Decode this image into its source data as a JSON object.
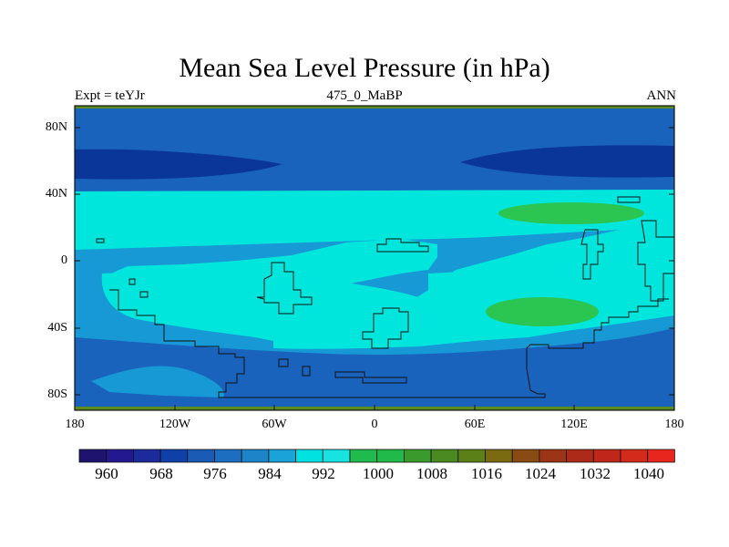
{
  "title": "Mean Sea Level Pressure (in hPa)",
  "subtitle_left": "Expt = teYJr",
  "subtitle_center": "475_0_MaBP",
  "subtitle_right": "ANN",
  "lat_labels": [
    "80N",
    "40N",
    "0",
    "40S",
    "80S"
  ],
  "lon_labels": [
    "180",
    "120W",
    "60W",
    "0",
    "60E",
    "120E",
    "180"
  ],
  "colorbar_labels": [
    "960",
    "968",
    "976",
    "984",
    "992",
    "1000",
    "1008",
    "1016",
    "1024",
    "1032",
    "1040"
  ],
  "colorbar_colors": [
    "#1f1370",
    "#241890",
    "#1c2a9c",
    "#0f3fa8",
    "#1a5bb5",
    "#1c6ec0",
    "#1e84ca",
    "#1aa3d6",
    "#00e1e2",
    "#17e3e0",
    "#1fbb4c",
    "#20ba4a",
    "#3a9a2c",
    "#4a8a20",
    "#5c8018",
    "#7a6a10",
    "#8a4b12",
    "#9b3516",
    "#ad2a18",
    "#c0271a",
    "#d32a1c",
    "#e8261d"
  ],
  "fill_colors": {
    "darkest": "#0a3699",
    "dark": "#1a63bd",
    "mid": "#1799d5",
    "light": "#00e6dd",
    "high": "#2bc551",
    "edge": "#5b8a1e"
  }
}
